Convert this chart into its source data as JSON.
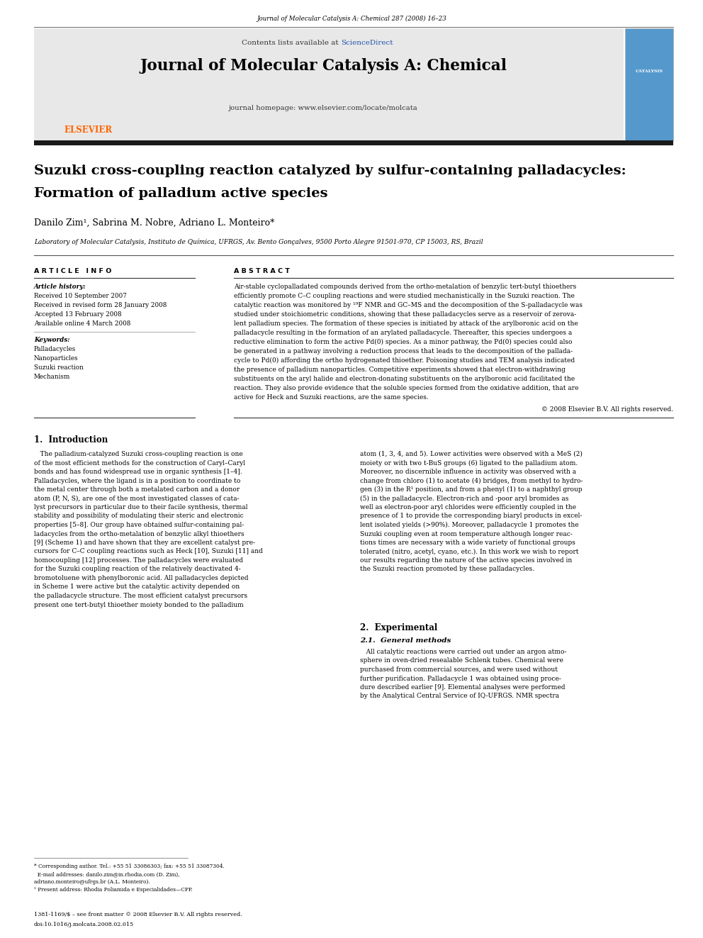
{
  "page_width": 9.92,
  "page_height": 13.23,
  "background_color": "#ffffff",
  "top_journal_ref": "Journal of Molecular Catalysis A: Chemical 287 (2008) 16–23",
  "header_bg": "#e8e8e8",
  "header_contents_line": "Contents lists available at ScienceDirect",
  "header_journal_name": "Journal of Molecular Catalysis A: Chemical",
  "header_homepage": "journal homepage: www.elsevier.com/locate/molcata",
  "thick_bar_color": "#1a1a1a",
  "article_title_line1": "Suzuki cross-coupling reaction catalyzed by sulfur-containing palladacycles:",
  "article_title_line2": "Formation of palladium active species",
  "authors": "Danilo Zim¹, Sabrina M. Nobre, Adriano L. Monteiro*",
  "affiliation": "Laboratory of Molecular Catalysis, Instituto de Química, UFRGS, Av. Bento Gonçalves, 9500 Porto Alegre 91501-970, CP 15003, RS, Brazil",
  "section_article_info": "A R T I C L E   I N F O",
  "section_abstract": "A B S T R A C T",
  "article_history_label": "Article history:",
  "article_history_lines": [
    "Received 10 September 2007",
    "Received in revised form 28 January 2008",
    "Accepted 13 February 2008",
    "Available online 4 March 2008"
  ],
  "keywords_label": "Keywords:",
  "keywords_lines": [
    "Palladacycles",
    "Nanoparticles",
    "Suzuki reaction",
    "Mechanism"
  ],
  "abstract_lines": [
    "Air-stable cyclopalladated compounds derived from the ortho-metalation of benzylic tert-butyl thioethers",
    "efficiently promote C–C coupling reactions and were studied mechanistically in the Suzuki reaction. The",
    "catalytic reaction was monitored by ¹⁹F NMR and GC–MS and the decomposition of the S-palladacycle was",
    "studied under stoichiometric conditions, showing that these palladacycles serve as a reservoir of zerova-",
    "lent palladium species. The formation of these species is initiated by attack of the arylboronic acid on the",
    "palladacycle resulting in the formation of an arylated palladacycle. Thereafter, this species undergoes a",
    "reductive elimination to form the active Pd(0) species. As a minor pathway, the Pd(0) species could also",
    "be generated in a pathway involving a reduction process that leads to the decomposition of the pallada-",
    "cycle to Pd(0) affording the ortho hydrogenated thioether. Poisoning studies and TEM analysis indicated",
    "the presence of palladium nanoparticles. Competitive experiments showed that electron-withdrawing",
    "substituents on the aryl halide and electron-donating substituents on the arylboronic acid facilitated the",
    "reaction. They also provide evidence that the soluble species formed from the oxidative addition, that are",
    "active for Heck and Suzuki reactions, are the same species."
  ],
  "copyright_line": "© 2008 Elsevier B.V. All rights reserved.",
  "intro_section": "1.  Introduction",
  "intro_col1_lines": [
    "   The palladium-catalyzed Suzuki cross-coupling reaction is one",
    "of the most efficient methods for the construction of Caryl–Caryl",
    "bonds and has found widespread use in organic synthesis [1–4].",
    "Palladacycles, where the ligand is in a position to coordinate to",
    "the metal center through both a metalated carbon and a donor",
    "atom (P, N, S), are one of the most investigated classes of cata-",
    "lyst precursors in particular due to their facile synthesis, thermal",
    "stability and possibility of modulating their steric and electronic",
    "properties [5–8]. Our group have obtained sulfur-containing pal-",
    "ladacycles from the ortho-metalation of benzylic alkyl thioethers",
    "[9] (Scheme 1) and have shown that they are excellent catalyst pre-",
    "cursors for C–C coupling reactions such as Heck [10], Suzuki [11] and",
    "homocoupling [12] processes. The palladacycles were evaluated",
    "for the Suzuki coupling reaction of the relatively deactivated 4-",
    "bromotoluene with phenylboronic acid. All palladacycles depicted",
    "in Scheme 1 were active but the catalytic activity depended on",
    "the palladacycle structure. The most efficient catalyst precursors",
    "present one tert-butyl thioether moiety bonded to the palladium"
  ],
  "intro_col2_lines": [
    "atom (1, 3, 4, and 5). Lower activities were observed with a MeS (2)",
    "moiety or with two t-BuS groups (6) ligated to the palladium atom.",
    "Moreover, no discernible influence in activity was observed with a",
    "change from chloro (1) to acetate (4) bridges, from methyl to hydro-",
    "gen (3) in the R¹ position, and from a phenyl (1) to a naphthyl group",
    "(5) in the palladacycle. Electron-rich and -poor aryl bromides as",
    "well as electron-poor aryl chlorides were efficiently coupled in the",
    "presence of 1 to provide the corresponding biaryl products in excel-",
    "lent isolated yields (>90%). Moreover, palladacycle 1 promotes the",
    "Suzuki coupling even at room temperature although longer reac-",
    "tions times are necessary with a wide variety of functional groups",
    "tolerated (nitro, acetyl, cyano, etc.). In this work we wish to report",
    "our results regarding the nature of the active species involved in",
    "the Suzuki reaction promoted by these palladacycles."
  ],
  "experimental_section": "2.  Experimental",
  "exp_subsection": "2.1.  General methods",
  "exp_col1_lines": [
    "   All catalytic reactions were carried out under an argon atmo-",
    "sphere in oven-dried resealable Schlenk tubes. Chemical were",
    "purchased from commercial sources, and were used without",
    "further purification. Palladacycle 1 was obtained using proce-",
    "dure described earlier [9]. Elemental analyses were performed",
    "by the Analytical Central Service of IQ-UFRGS. NMR spectra"
  ],
  "footer_line1": "* Corresponding author. Tel.: +55 51 33086303; fax: +55 51 33087304.",
  "footer_email": "  E-mail addresses: danilo.zim@in.rhodia.com (D. Zim),",
  "footer_email2": "adriano.monteiro@ufrgs.br (A.L. Monteiro).",
  "footer_note": "¹ Present address: Rhodia Poliamida e Especialidades—CPP.",
  "footer_issn": "1381-1169/$ – see front matter © 2008 Elsevier B.V. All rights reserved.",
  "footer_doi": "doi:10.1016/j.molcata.2008.02.015",
  "elsevier_color": "#ff6600",
  "sciencedirect_color": "#2255aa"
}
